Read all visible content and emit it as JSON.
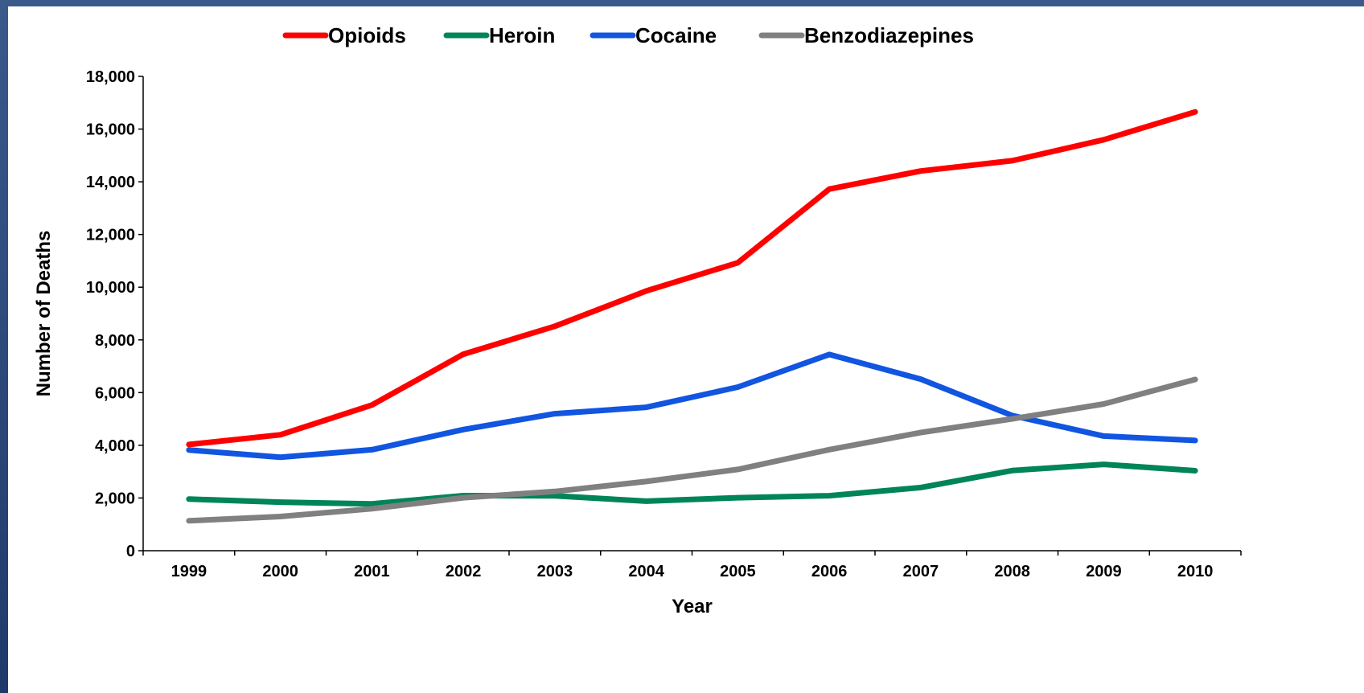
{
  "chart_data": {
    "type": "line",
    "xlabel": "Year",
    "ylabel": "Number of Deaths",
    "x": [
      "1999",
      "2000",
      "2001",
      "2002",
      "2003",
      "2004",
      "2005",
      "2006",
      "2007",
      "2008",
      "2009",
      "2010"
    ],
    "ylim": [
      0,
      18000
    ],
    "yticks": [
      0,
      2000,
      4000,
      6000,
      8000,
      10000,
      12000,
      14000,
      16000,
      18000
    ],
    "ytick_labels": [
      "0",
      "2,000",
      "4,000",
      "6,000",
      "8,000",
      "10,000",
      "12,000",
      "14,000",
      "16,000",
      "18,000"
    ],
    "grid": false,
    "legend_position": "top",
    "series": [
      {
        "name": "Opioids",
        "color": "#ff0000",
        "values": [
          4030,
          4400,
          5528,
          7456,
          8517,
          9857,
          10928,
          13723,
          14408,
          14800,
          15597,
          16651
        ]
      },
      {
        "name": "Heroin",
        "color": "#00845a",
        "values": [
          1960,
          1842,
          1779,
          2089,
          2080,
          1878,
          2009,
          2088,
          2399,
          3041,
          3278,
          3036
        ]
      },
      {
        "name": "Cocaine",
        "color": "#1155e0",
        "values": [
          3822,
          3544,
          3833,
          4599,
          5199,
          5443,
          6208,
          7448,
          6512,
          5129,
          4350,
          4183
        ]
      },
      {
        "name": "Benzodiazepines",
        "color": "#808080",
        "values": [
          1135,
          1298,
          1594,
          2012,
          2248,
          2627,
          3084,
          3835,
          4486,
          5004,
          5567,
          6497
        ]
      }
    ]
  }
}
